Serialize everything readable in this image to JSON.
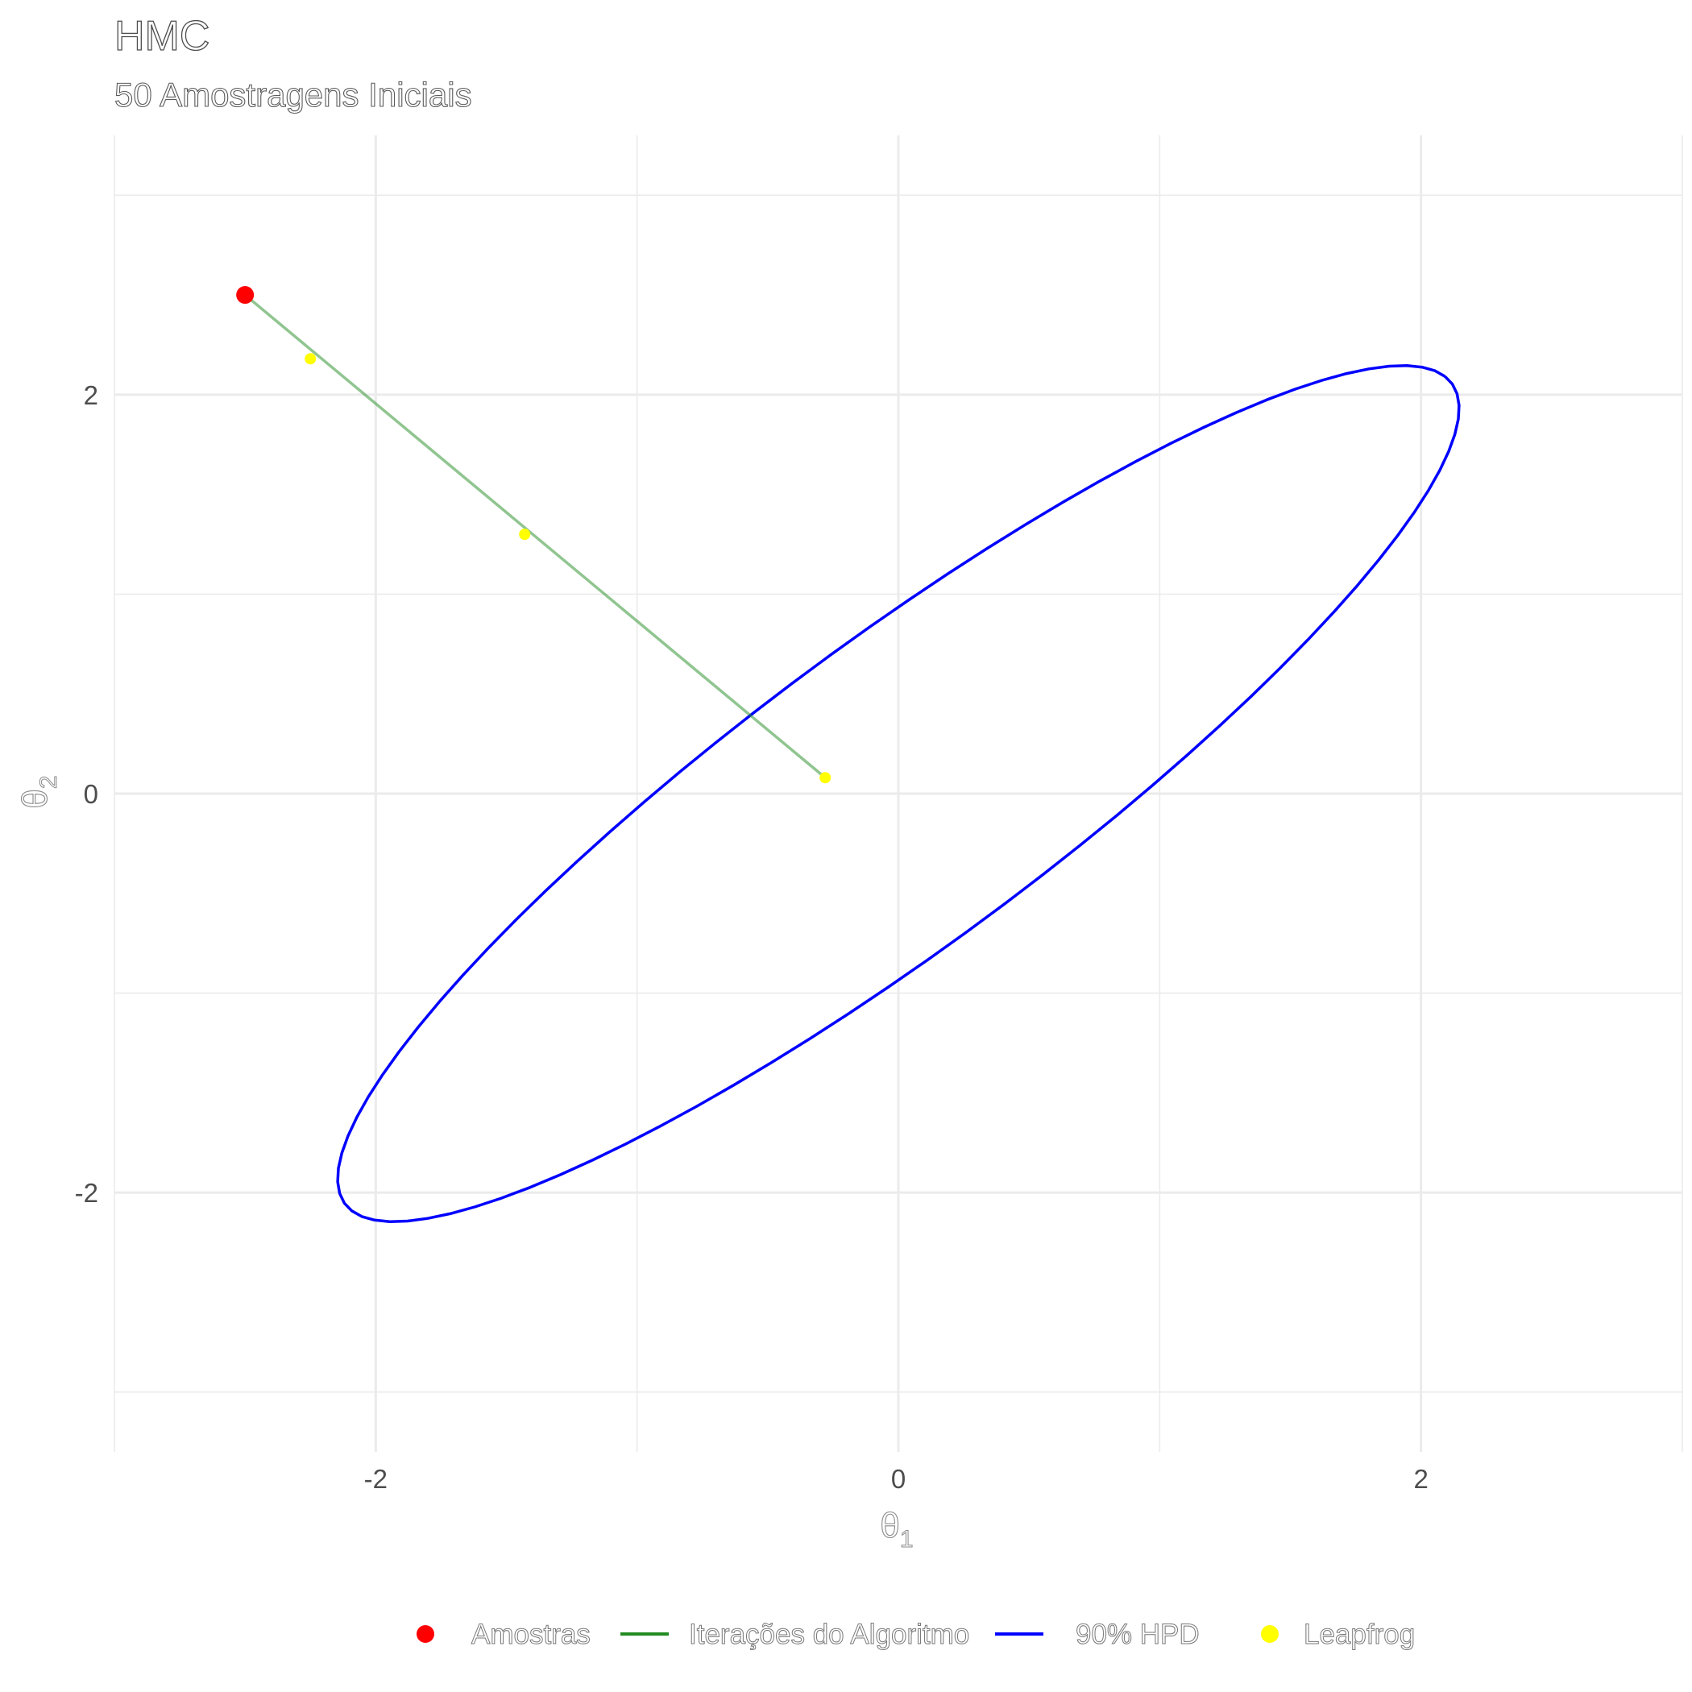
{
  "chart_data": {
    "type": "scatter",
    "title": "HMC",
    "subtitle": "50 Amostragens Iniciais",
    "xlabel": "θ",
    "xlabel_sub": "1",
    "ylabel": "θ",
    "ylabel_sub": "2",
    "xlim": [
      -3.0,
      3.0
    ],
    "ylim": [
      -3.3,
      3.3
    ],
    "x_ticks": [
      -2,
      0,
      2
    ],
    "y_ticks": [
      -2,
      0,
      2
    ],
    "x_tick_labels": [
      "-2",
      "0",
      "2"
    ],
    "y_tick_labels": [
      "-2",
      "0",
      "2"
    ],
    "grid": true,
    "legend_position": "bottom",
    "series": [
      {
        "name": "Amostras",
        "kind": "point",
        "color": "#ff0000",
        "points": [
          [
            -2.5,
            2.5
          ]
        ]
      },
      {
        "name": "Iterações do Algoritmo",
        "kind": "line",
        "color": "#228b22",
        "points": [
          [
            -2.5,
            2.5
          ],
          [
            -0.28,
            0.08
          ]
        ]
      },
      {
        "name": "90% HPD",
        "kind": "ellipse",
        "color": "#0000ff",
        "center": [
          0,
          0
        ],
        "covariance": [
          [
            1,
            0.9
          ],
          [
            0.9,
            1
          ]
        ],
        "level": 0.9
      },
      {
        "name": "Leapfrog",
        "kind": "point",
        "color": "#ffff00",
        "points": [
          [
            -2.25,
            2.18
          ],
          [
            -1.43,
            1.3
          ],
          [
            -0.28,
            0.08
          ]
        ]
      }
    ]
  }
}
